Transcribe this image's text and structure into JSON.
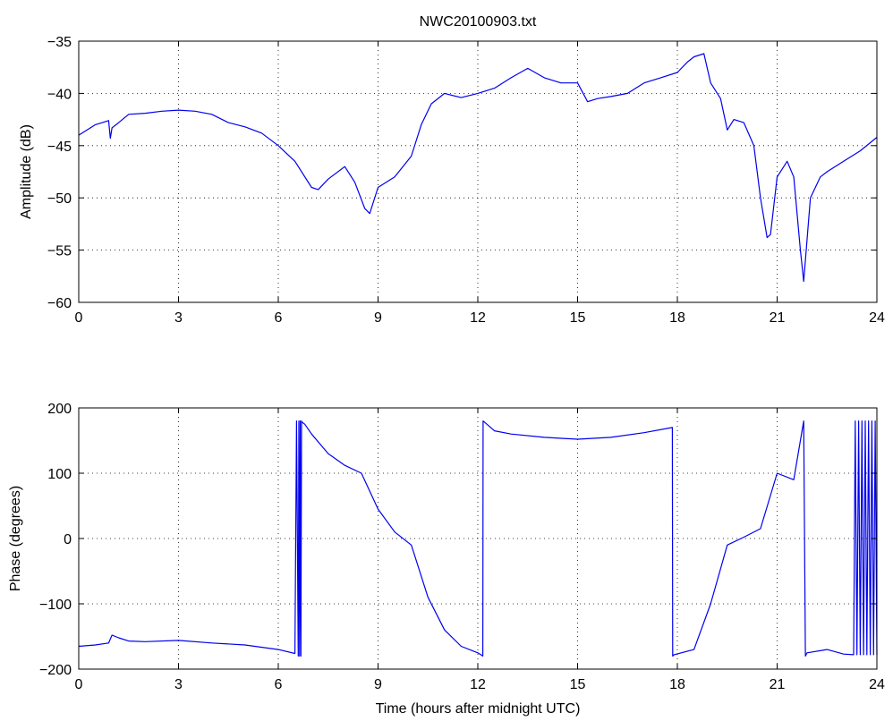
{
  "figure": {
    "title": "NWC20100903.txt"
  },
  "chart_data": [
    {
      "type": "line",
      "title": "NWC20100903.txt",
      "xlabel": "",
      "ylabel": "Amplitude (dB)",
      "xlim": [
        0,
        24
      ],
      "ylim": [
        -60,
        -35
      ],
      "xticks": [
        0,
        3,
        6,
        9,
        12,
        15,
        18,
        21,
        24
      ],
      "yticks": [
        -60,
        -55,
        -50,
        -45,
        -40,
        -35
      ],
      "grid": true,
      "series_color": "#0000ee",
      "series": [
        {
          "x": [
            0,
            0.5,
            0.9,
            0.95,
            1.0,
            1.2,
            1.5,
            2.0,
            2.5,
            3.0,
            3.5,
            4.0,
            4.5,
            5.0,
            5.5,
            6.0,
            6.5,
            7.0,
            7.2,
            7.5,
            8.0,
            8.3,
            8.6,
            8.75,
            9.0,
            9.5,
            10.0,
            10.3,
            10.6,
            11.0,
            11.5,
            12.0,
            12.5,
            13.0,
            13.5,
            14.0,
            14.5,
            15.0,
            15.3,
            15.6,
            16.0,
            16.5,
            17.0,
            17.5,
            18.0,
            18.3,
            18.5,
            18.8,
            19.0,
            19.3,
            19.5,
            19.7,
            20.0,
            20.3,
            20.5,
            20.7,
            20.8,
            21.0,
            21.3,
            21.5,
            21.7,
            21.8,
            22.0,
            22.3,
            22.5,
            23.0,
            23.5,
            24.0
          ],
          "y": [
            -44.0,
            -43.0,
            -42.6,
            -44.3,
            -43.3,
            -42.8,
            -42.0,
            -41.9,
            -41.7,
            -41.6,
            -41.7,
            -42.0,
            -42.8,
            -43.2,
            -43.8,
            -45.0,
            -46.5,
            -49.0,
            -49.2,
            -48.2,
            -47.0,
            -48.5,
            -51.0,
            -51.5,
            -49.0,
            -48.0,
            -46.0,
            -43.0,
            -41.0,
            -40.0,
            -40.4,
            -40.0,
            -39.5,
            -38.5,
            -37.6,
            -38.5,
            -39.0,
            -39.0,
            -40.8,
            -40.5,
            -40.3,
            -40.0,
            -39.0,
            -38.5,
            -38.0,
            -37.0,
            -36.5,
            -36.2,
            -39.0,
            -40.5,
            -43.5,
            -42.5,
            -42.8,
            -45.0,
            -50.0,
            -53.8,
            -53.5,
            -48.0,
            -46.5,
            -48.0,
            -55.0,
            -58.0,
            -50.0,
            -48.0,
            -47.5,
            -46.5,
            -45.5,
            -44.2
          ]
        }
      ]
    },
    {
      "type": "line",
      "title": "",
      "xlabel": "Time (hours after midnight UTC)",
      "ylabel": "Phase (degrees)",
      "xlim": [
        0,
        24
      ],
      "ylim": [
        -200,
        200
      ],
      "xticks": [
        0,
        3,
        6,
        9,
        12,
        15,
        18,
        21,
        24
      ],
      "yticks": [
        -200,
        -100,
        0,
        100,
        200
      ],
      "grid": true,
      "series_color": "#0000ee",
      "series": [
        {
          "x": [
            0,
            0.5,
            0.9,
            1.0,
            1.2,
            1.5,
            2.0,
            3.0,
            4.0,
            5.0,
            6.0,
            6.5,
            6.55,
            6.6,
            6.62,
            6.64,
            6.66,
            6.68,
            6.7,
            6.72,
            6.8,
            7.0,
            7.5,
            8.0,
            8.5,
            9.0,
            9.5,
            10.0,
            10.5,
            11.0,
            11.5,
            12.0,
            12.15,
            12.16,
            12.5,
            13.0,
            14.0,
            15.0,
            16.0,
            17.0,
            17.85,
            17.86,
            17.9,
            18.5,
            19.0,
            19.5,
            20.0,
            20.5,
            21.0,
            21.5,
            21.8,
            21.85,
            21.9,
            22.5,
            23.0,
            23.3,
            23.35,
            23.4,
            23.45,
            23.5,
            23.55,
            23.6,
            23.65,
            23.7,
            23.75,
            23.8,
            23.85,
            23.9,
            23.95,
            24.0
          ],
          "y": [
            -165,
            -163,
            -160,
            -148,
            -152,
            -157,
            -158,
            -156,
            -160,
            -163,
            -170,
            -176,
            180,
            -180,
            180,
            -180,
            180,
            -180,
            180,
            178,
            175,
            160,
            130,
            112,
            100,
            45,
            10,
            -10,
            -90,
            -140,
            -165,
            -175,
            -180,
            180,
            165,
            160,
            155,
            152,
            155,
            162,
            170,
            -180,
            -178,
            -170,
            -100,
            -10,
            2,
            15,
            100,
            90,
            180,
            -180,
            -175,
            -170,
            -177,
            -178,
            180,
            -178,
            180,
            -178,
            180,
            -178,
            180,
            -178,
            180,
            -178,
            180,
            -178,
            180,
            -178
          ]
        }
      ]
    }
  ]
}
